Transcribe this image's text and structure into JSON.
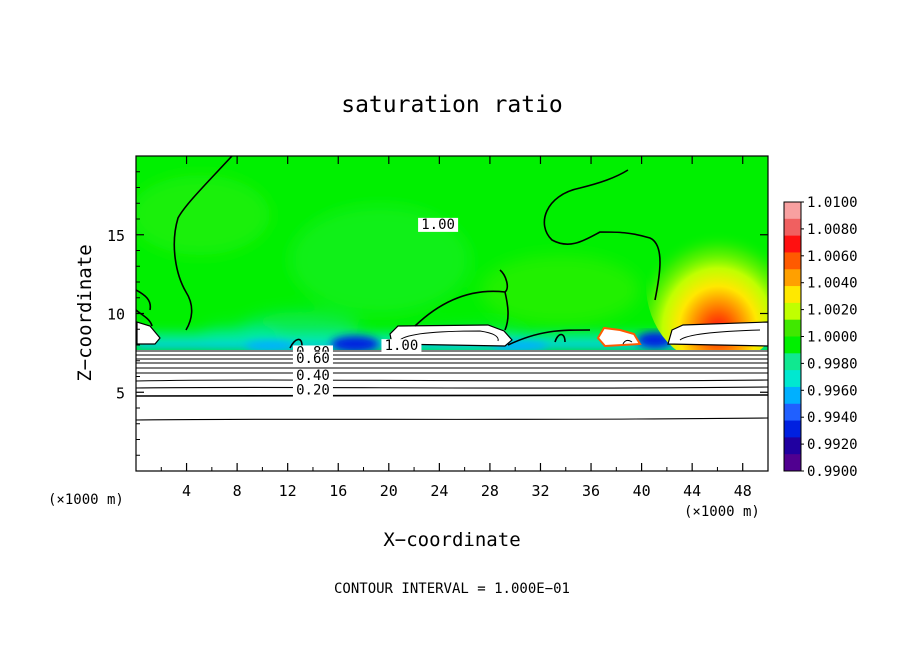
{
  "chart_data": {
    "type": "heatmap",
    "title": "saturation ratio",
    "xlabel": "X−coordinate",
    "ylabel": "Z−coordinate",
    "x_unit_left": "(×1000 m)",
    "x_unit_right": "(×1000 m)",
    "xlim": [
      0,
      50
    ],
    "ylim": [
      0,
      20
    ],
    "x_ticks": [
      4,
      8,
      12,
      16,
      20,
      24,
      28,
      32,
      36,
      40,
      44,
      48
    ],
    "x_tick_labels": [
      "4",
      "8",
      "12",
      "16",
      "20",
      "24",
      "28",
      "32",
      "36",
      "40",
      "44",
      "48"
    ],
    "y_ticks": [
      5,
      10,
      15
    ],
    "y_tick_labels": [
      "5",
      "10",
      "15"
    ],
    "footer": "CONTOUR INTERVAL = 1.000E−01",
    "colorbar": {
      "range": [
        0.99,
        1.01
      ],
      "labels": [
        "1.0100",
        "1.0080",
        "1.0060",
        "1.0040",
        "1.0020",
        "1.0000",
        "0.9980",
        "0.9960",
        "0.9940",
        "0.9920",
        "0.9900"
      ],
      "colors": [
        "#f8a0a0",
        "#f06060",
        "#ff1010",
        "#ff5a00",
        "#ffa000",
        "#ffe800",
        "#c0ff00",
        "#40e800",
        "#00f000",
        "#10e890",
        "#00e8d0",
        "#00b0ff",
        "#2060ff",
        "#0020e0",
        "#2000a0",
        "#500090"
      ]
    },
    "contour_labels": [
      {
        "text": "1.00",
        "x": 23.9,
        "z": 15.5
      },
      {
        "text": "1.00",
        "x": 21.0,
        "z": 7.8
      },
      {
        "text": "0.80",
        "x": 14.0,
        "z": 7.4
      },
      {
        "text": "0.60",
        "x": 14.0,
        "z": 7.0
      },
      {
        "text": "0.40",
        "x": 14.0,
        "z": 5.9
      },
      {
        "text": "0.20",
        "x": 14.0,
        "z": 5.0
      }
    ]
  }
}
